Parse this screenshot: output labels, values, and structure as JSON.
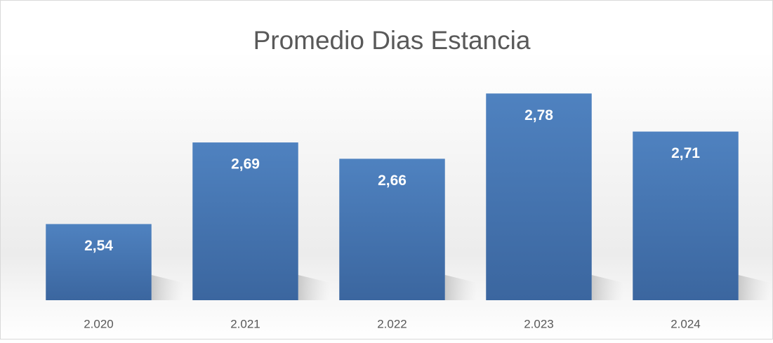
{
  "chart_data": {
    "type": "bar",
    "title": "Promedio Dias Estancia",
    "categories": [
      "2.020",
      "2.021",
      "2.022",
      "2.023",
      "2.024"
    ],
    "values": [
      2.54,
      2.69,
      2.66,
      2.78,
      2.71
    ],
    "value_labels": [
      "2,54",
      "2,69",
      "2,66",
      "2,78",
      "2,71"
    ],
    "color": "#4a7cbb",
    "ylim": [
      2.4,
      2.85
    ]
  }
}
